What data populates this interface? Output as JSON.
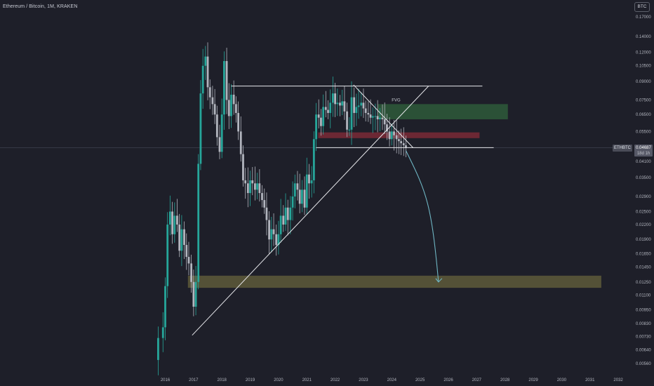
{
  "header": {
    "title": "Ethereum / Bitcoin, 1M, KRAKEN",
    "currency_button": "BTC"
  },
  "price_marker": {
    "symbol": "ETHBTC",
    "value": "0.04687",
    "countdown": "18d 1h"
  },
  "colors": {
    "background": "#1e1f29",
    "up_candle": "#26a69a",
    "down_candle": "#b2b5be",
    "trendline": "#e8e8ec",
    "projection_arrow": "#6fb6c4",
    "fvg_zone": "#2e5a3a",
    "red_zone": "#7a2a36",
    "target_zone": "#5e5a3a"
  },
  "chart_data": {
    "type": "candlestick",
    "title": "Ethereum / Bitcoin, 1M, KRAKEN",
    "x_unit": "year",
    "y_scale": "log",
    "ylim": [
      0.0052,
      0.19
    ],
    "xlim": [
      2015.3,
      2032.3
    ],
    "y_ticks": [
      "0.17000",
      "0.14000",
      "0.12000",
      "0.10500",
      "0.09000",
      "0.07500",
      "0.06500",
      "0.05500",
      "0.04100",
      "0.03500",
      "0.02900",
      "0.02500",
      "0.02200",
      "0.01900",
      "0.01650",
      "0.01450",
      "0.01250",
      "0.01100",
      "0.00950",
      "0.00830",
      "0.00730",
      "0.00640",
      "0.00560"
    ],
    "x_ticks": [
      "2016",
      "2017",
      "2018",
      "2019",
      "2020",
      "2021",
      "2022",
      "2023",
      "2024",
      "2025",
      "2026",
      "2027",
      "2028",
      "2029",
      "2030",
      "2031",
      "2032"
    ],
    "close_path": [
      [
        2015.58,
        0.0058
      ],
      [
        2015.75,
        0.0072
      ],
      [
        2015.92,
        0.008
      ],
      [
        2016.0,
        0.012
      ],
      [
        2016.08,
        0.022
      ],
      [
        2016.17,
        0.025
      ],
      [
        2016.25,
        0.02
      ],
      [
        2016.33,
        0.024
      ],
      [
        2016.42,
        0.022
      ],
      [
        2016.5,
        0.017
      ],
      [
        2016.58,
        0.021
      ],
      [
        2016.67,
        0.018
      ],
      [
        2016.75,
        0.016
      ],
      [
        2016.83,
        0.015
      ],
      [
        2016.92,
        0.0125
      ],
      [
        2017.0,
        0.0098
      ],
      [
        2017.08,
        0.0125
      ],
      [
        2017.17,
        0.04
      ],
      [
        2017.25,
        0.08
      ],
      [
        2017.33,
        0.105
      ],
      [
        2017.42,
        0.115
      ],
      [
        2017.5,
        0.085
      ],
      [
        2017.58,
        0.077
      ],
      [
        2017.67,
        0.072
      ],
      [
        2017.75,
        0.065
      ],
      [
        2017.83,
        0.052
      ],
      [
        2017.92,
        0.045
      ],
      [
        2018.0,
        0.065
      ],
      [
        2018.08,
        0.11
      ],
      [
        2018.17,
        0.075
      ],
      [
        2018.25,
        0.064
      ],
      [
        2018.33,
        0.079
      ],
      [
        2018.42,
        0.072
      ],
      [
        2018.5,
        0.066
      ],
      [
        2018.58,
        0.055
      ],
      [
        2018.67,
        0.044
      ],
      [
        2018.75,
        0.034
      ],
      [
        2018.83,
        0.033
      ],
      [
        2018.92,
        0.03
      ],
      [
        2019.0,
        0.034
      ],
      [
        2019.08,
        0.033
      ],
      [
        2019.17,
        0.031
      ],
      [
        2019.25,
        0.033
      ],
      [
        2019.33,
        0.03
      ],
      [
        2019.42,
        0.028
      ],
      [
        2019.5,
        0.026
      ],
      [
        2019.58,
        0.023
      ],
      [
        2019.67,
        0.019
      ],
      [
        2019.75,
        0.021
      ],
      [
        2019.83,
        0.02
      ],
      [
        2019.92,
        0.018
      ],
      [
        2020.0,
        0.02
      ],
      [
        2020.08,
        0.024
      ],
      [
        2020.17,
        0.022
      ],
      [
        2020.25,
        0.026
      ],
      [
        2020.33,
        0.023
      ],
      [
        2020.42,
        0.026
      ],
      [
        2020.5,
        0.029
      ],
      [
        2020.58,
        0.033
      ],
      [
        2020.67,
        0.031
      ],
      [
        2020.75,
        0.027
      ],
      [
        2020.83,
        0.031
      ],
      [
        2020.92,
        0.026
      ],
      [
        2021.0,
        0.036
      ],
      [
        2021.08,
        0.033
      ],
      [
        2021.17,
        0.034
      ],
      [
        2021.25,
        0.051
      ],
      [
        2021.33,
        0.065
      ],
      [
        2021.42,
        0.063
      ],
      [
        2021.5,
        0.058
      ],
      [
        2021.58,
        0.07
      ],
      [
        2021.67,
        0.068
      ],
      [
        2021.75,
        0.066
      ],
      [
        2021.83,
        0.073
      ],
      [
        2021.92,
        0.08
      ],
      [
        2022.0,
        0.072
      ],
      [
        2022.08,
        0.073
      ],
      [
        2022.17,
        0.071
      ],
      [
        2022.25,
        0.074
      ],
      [
        2022.33,
        0.067
      ],
      [
        2022.42,
        0.056
      ],
      [
        2022.5,
        0.056
      ],
      [
        2022.58,
        0.077
      ],
      [
        2022.67,
        0.066
      ],
      [
        2022.75,
        0.07
      ],
      [
        2022.83,
        0.071
      ],
      [
        2022.92,
        0.073
      ],
      [
        2023.0,
        0.069
      ],
      [
        2023.08,
        0.066
      ],
      [
        2023.17,
        0.065
      ],
      [
        2023.25,
        0.063
      ],
      [
        2023.33,
        0.064
      ],
      [
        2023.42,
        0.064
      ],
      [
        2023.5,
        0.062
      ],
      [
        2023.58,
        0.063
      ],
      [
        2023.67,
        0.062
      ],
      [
        2023.75,
        0.059
      ],
      [
        2023.83,
        0.055
      ],
      [
        2023.92,
        0.051
      ],
      [
        2024.0,
        0.055
      ],
      [
        2024.08,
        0.053
      ],
      [
        2024.17,
        0.051
      ],
      [
        2024.25,
        0.05
      ],
      [
        2024.33,
        0.049
      ],
      [
        2024.42,
        0.048
      ],
      [
        2024.5,
        0.0469
      ]
    ],
    "drawings": {
      "upper_range_price": 0.086,
      "lower_range_price": 0.0469,
      "lower_range_x": [
        2021.33,
        2027.6
      ],
      "upper_range_x": [
        2018.33,
        2027.2
      ],
      "fvg_zone": {
        "label": "FVG",
        "x": [
          2023.5,
          2028.1
        ],
        "y": [
          0.062,
          0.072
        ]
      },
      "red_zone": {
        "x": [
          2021.4,
          2027.1
        ],
        "y": [
          0.0515,
          0.0545
        ]
      },
      "target_zone": {
        "x": [
          2016.8,
          2031.4
        ],
        "y": [
          0.0118,
          0.0133
        ]
      },
      "projection_end": [
        2025.65,
        0.0125
      ]
    },
    "last_price": "0.04687"
  }
}
